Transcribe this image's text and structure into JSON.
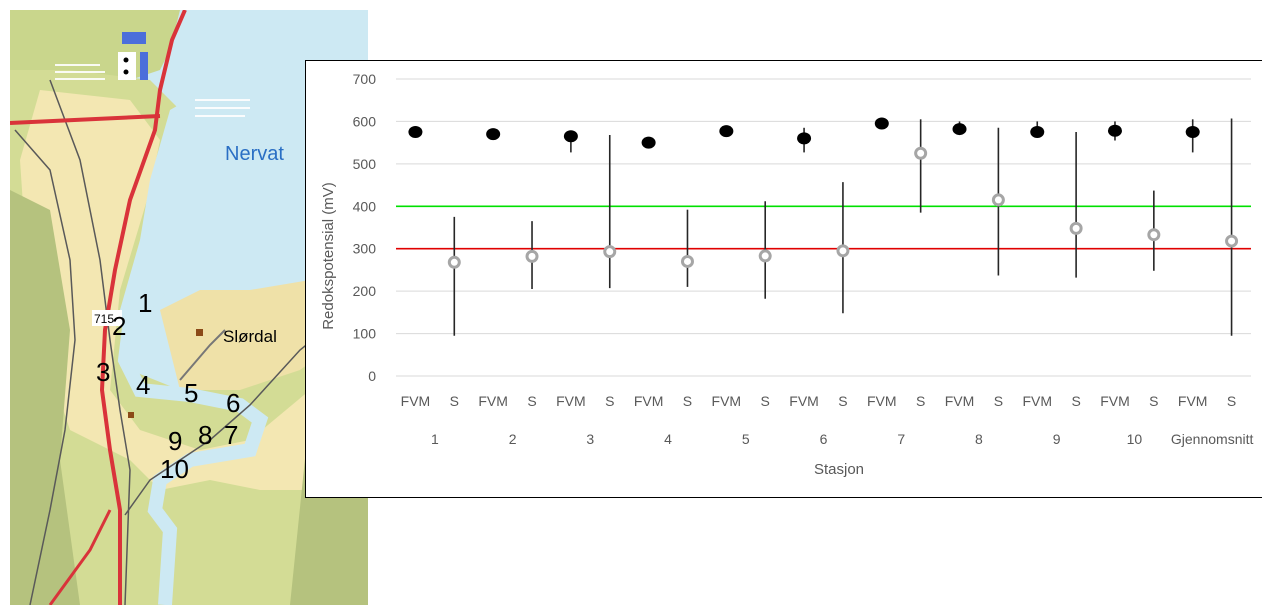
{
  "map": {
    "lake_name": "Nervat",
    "place_name": "Slørdal",
    "road_number": "715",
    "stations": [
      "1",
      "2",
      "3",
      "4",
      "5",
      "6",
      "7",
      "8",
      "9",
      "10"
    ],
    "colors": {
      "land": "#f3e7b2",
      "forest": "#c9d68c",
      "hill": "#b5c27e",
      "water": "#cde9f3",
      "lake_text": "#2a6fc4",
      "road": "#d9333a",
      "track": "#595959"
    }
  },
  "chart_data": {
    "type": "scatter",
    "ylabel": "Redokspotensial (mV)",
    "xlabel": "Stasjon",
    "ylim": [
      0,
      700
    ],
    "yticks": [
      0,
      100,
      200,
      300,
      400,
      500,
      600,
      700
    ],
    "grid": true,
    "sub_categories": [
      "FVM",
      "S"
    ],
    "groups": [
      "1",
      "2",
      "3",
      "4",
      "5",
      "6",
      "7",
      "8",
      "9",
      "10",
      "Gjennomsnitt"
    ],
    "series": [
      {
        "sub": "FVM",
        "color": "#000000",
        "values": [
          575,
          570,
          565,
          550,
          577,
          560,
          595,
          582,
          575,
          578,
          575
        ],
        "err_low": [
          575,
          570,
          527,
          550,
          577,
          527,
          595,
          575,
          565,
          555,
          527
        ],
        "err_high": [
          575,
          570,
          575,
          550,
          577,
          585,
          595,
          600,
          600,
          600,
          605
        ]
      },
      {
        "sub": "S",
        "color": "#a6a6a6",
        "values": [
          268,
          282,
          293,
          270,
          283,
          295,
          525,
          415,
          348,
          333,
          318
        ],
        "err_low": [
          95,
          205,
          207,
          210,
          182,
          148,
          385,
          237,
          232,
          248,
          95
        ],
        "err_high": [
          375,
          365,
          568,
          392,
          412,
          457,
          605,
          585,
          575,
          437,
          607
        ]
      }
    ],
    "reference_lines": [
      {
        "value": 400,
        "color": "#00e000"
      },
      {
        "value": 300,
        "color": "#e00000"
      }
    ]
  }
}
